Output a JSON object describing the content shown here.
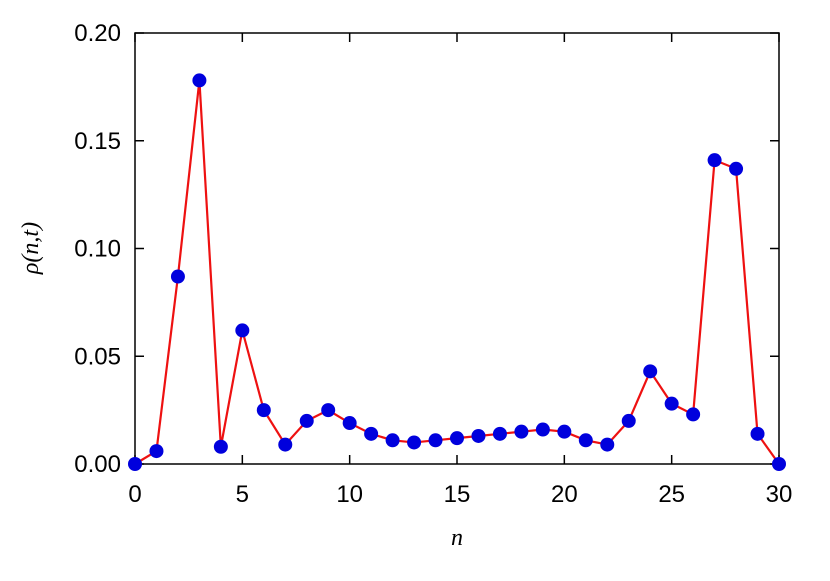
{
  "chart_data": {
    "type": "line",
    "x_label": "n",
    "y_label": "ρ(n,t)",
    "x": [
      0,
      1,
      2,
      3,
      4,
      5,
      6,
      7,
      8,
      9,
      10,
      11,
      12,
      13,
      14,
      15,
      16,
      17,
      18,
      19,
      20,
      21,
      22,
      23,
      24,
      25,
      26,
      27,
      28,
      29,
      30
    ],
    "series": [
      {
        "color": "#ee1111",
        "marker_color": "#0000dd",
        "values": [
          0,
          0.006,
          0.087,
          0.178,
          0.008,
          0.062,
          0.025,
          0.009,
          0.02,
          0.025,
          0.019,
          0.014,
          0.011,
          0.01,
          0.011,
          0.012,
          0.013,
          0.014,
          0.015,
          0.016,
          0.015,
          0.011,
          0.009,
          0.02,
          0.043,
          0.028,
          0.023,
          0.141,
          0.137,
          0.014,
          0
        ]
      }
    ],
    "xlim": [
      0,
      30
    ],
    "xticks": [
      0,
      5,
      10,
      15,
      20,
      25,
      30
    ],
    "ylim": [
      0,
      0.2
    ],
    "yticks": [
      {
        "value": 0,
        "label": "0.00"
      },
      {
        "value": 0.05,
        "label": "0.05"
      },
      {
        "value": 0.1,
        "label": "0.10"
      },
      {
        "value": 0.15,
        "label": "0.15"
      },
      {
        "value": 0.2,
        "label": "0.20"
      }
    ],
    "grid": false
  }
}
